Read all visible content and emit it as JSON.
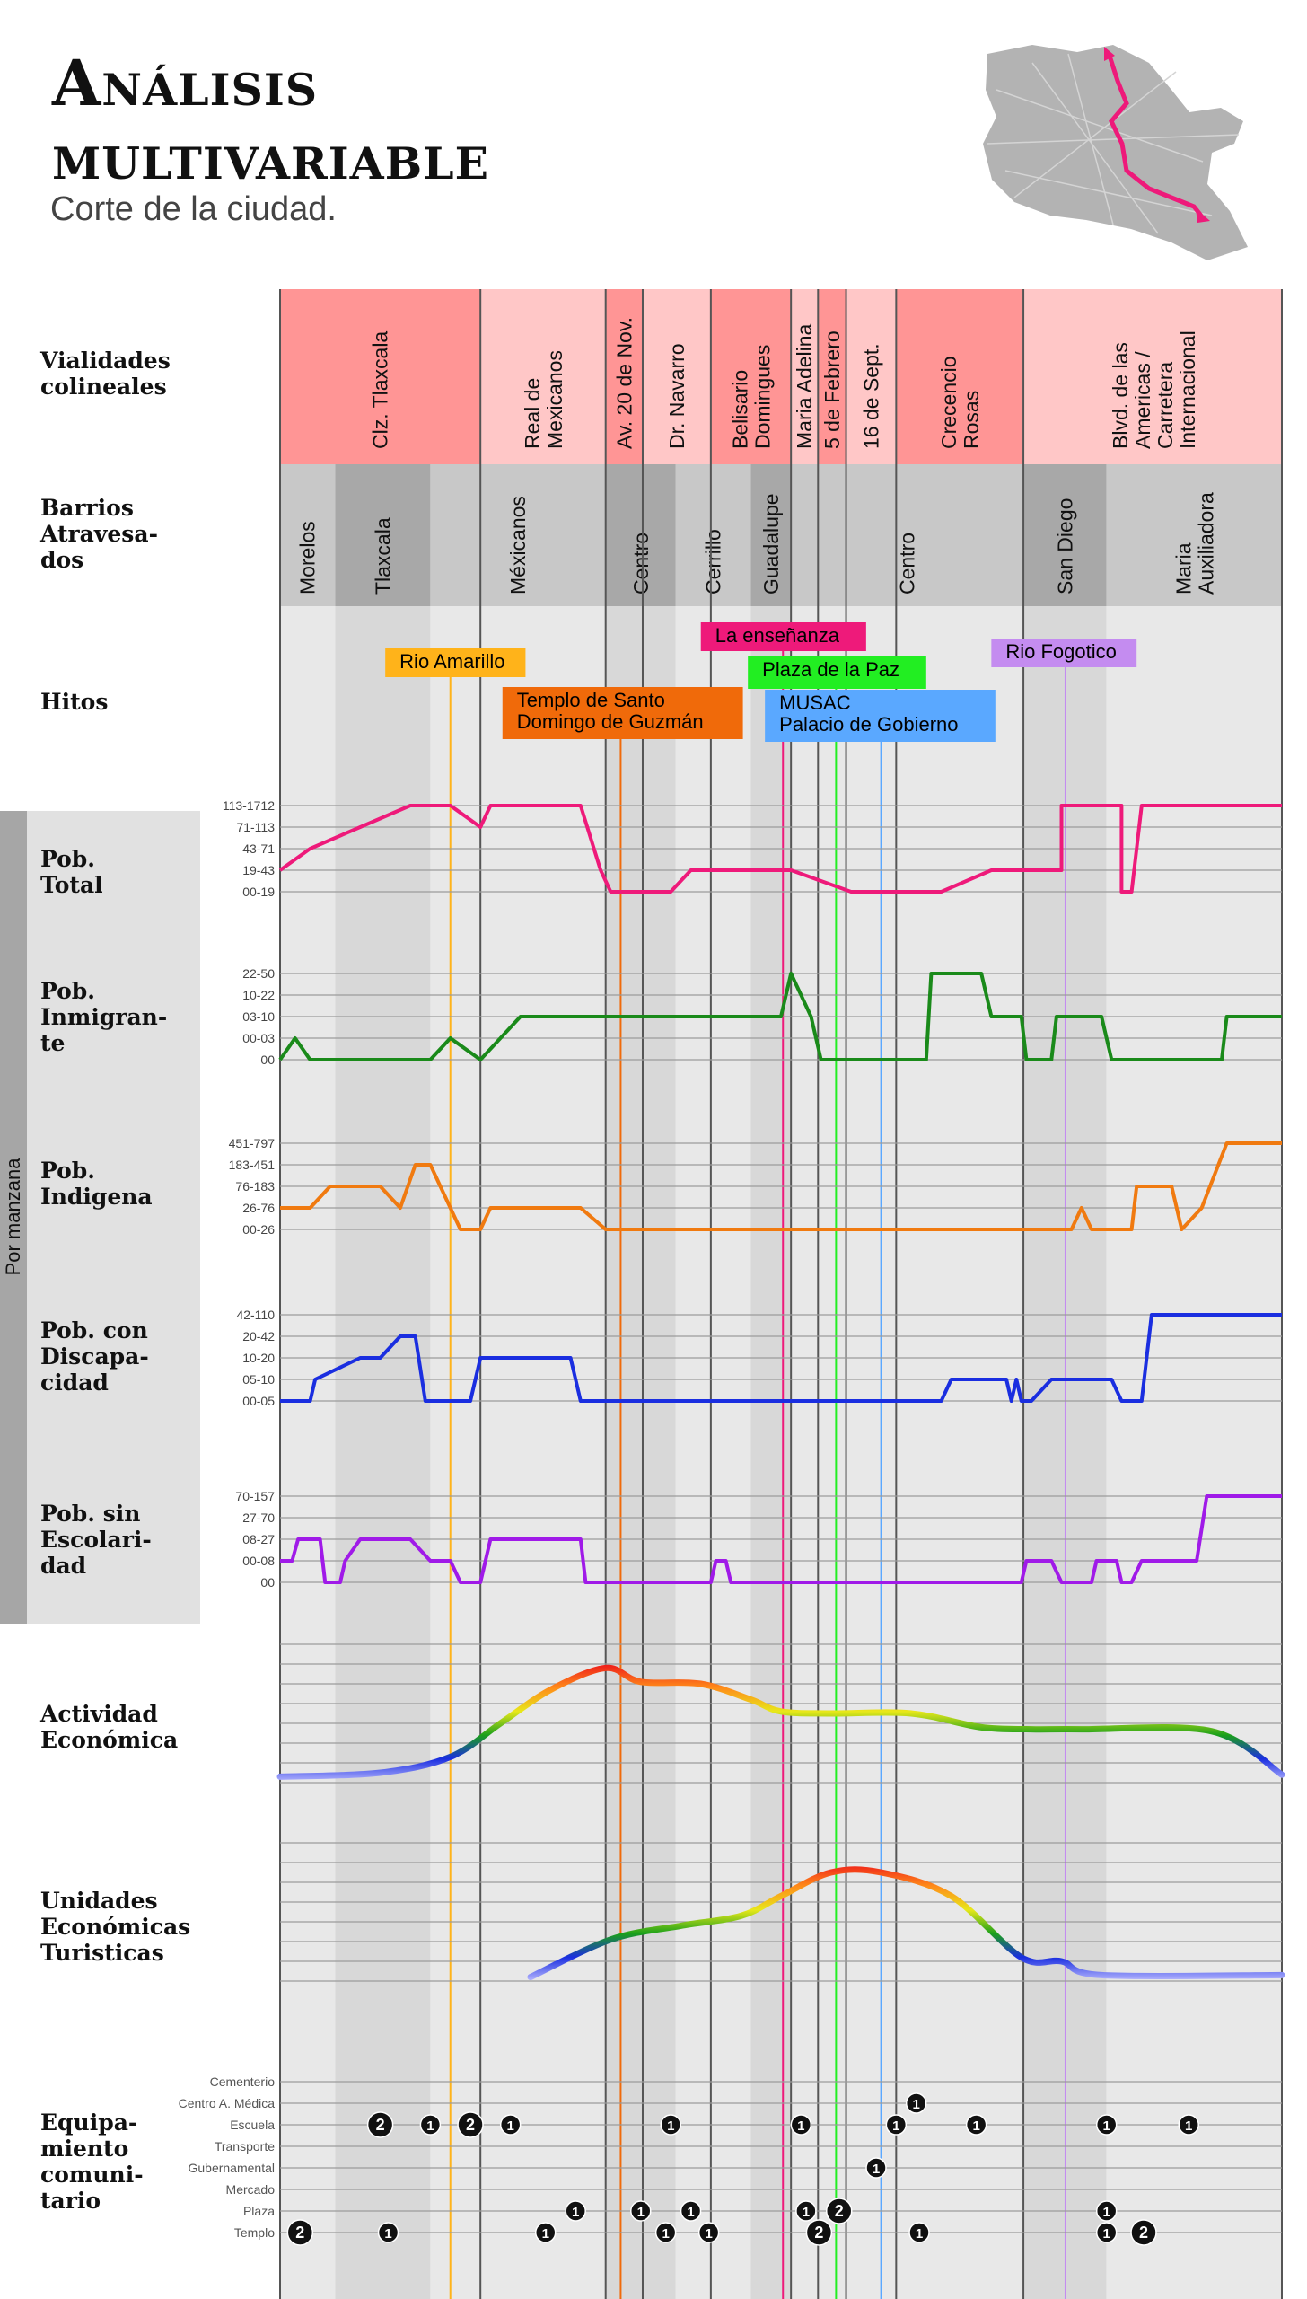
{
  "title_line1": "Análisis",
  "title_line2": "multivariable",
  "subtitle": "Corte de la ciudad.",
  "map_icon": "city-map-route-icon",
  "colors": {
    "accent": "#ee1a7a",
    "vialidad_dark": "#ff9595",
    "vialidad_light": "#ffc7c7",
    "barrio_dark": "#a8a8a8",
    "barrio_light": "#c8c8c8",
    "band_light": "#e8e8e8",
    "band_dark": "#d8d8d8"
  },
  "side_label": "Por manzana",
  "sections": {
    "vialidades": [
      "Vialidades",
      "colineales"
    ],
    "barrios": [
      "Barrios",
      "Atravesa-",
      "dos"
    ],
    "hitos": [
      "Hitos"
    ],
    "pob_total": [
      "Pob.",
      "Total"
    ],
    "pob_inmigrante": [
      "Pob.",
      "Inmigran-",
      "te"
    ],
    "pob_indigena": [
      "Pob.",
      "Indigena"
    ],
    "pob_discapacidad": [
      "Pob. con",
      "Discapa-",
      "cidad"
    ],
    "pob_escolaridad": [
      "Pob. sin",
      "Escolari-",
      "dad"
    ],
    "actividad": [
      "Actividad",
      "Económica"
    ],
    "turisticas": [
      "Unidades",
      "Económicas",
      "Turisticas"
    ],
    "equipamiento": [
      "Equipa-",
      "miento",
      "comuni-",
      "tario"
    ]
  },
  "vialidades": [
    {
      "name": [
        "Clz. Tlaxcala"
      ],
      "shade": "dark"
    },
    {
      "name": [
        "Real de",
        "Mexicanos"
      ],
      "shade": "light"
    },
    {
      "name": [
        "Av. 20 de Nov."
      ],
      "shade": "dark"
    },
    {
      "name": [
        "Dr. Navarro"
      ],
      "shade": "light"
    },
    {
      "name": [
        "Belisario",
        "Domingues"
      ],
      "shade": "dark"
    },
    {
      "name": [
        "Maria Adelina"
      ],
      "shade": "light"
    },
    {
      "name": [
        "5 de Febrero"
      ],
      "shade": "dark"
    },
    {
      "name": [
        "16 de Sept."
      ],
      "shade": "light"
    },
    {
      "name": [
        "Crecencio",
        "Rosas"
      ],
      "shade": "dark"
    },
    {
      "name": [
        "Blvd. de las",
        "Americas /",
        "Carretera",
        "Internacional"
      ],
      "shade": "light"
    }
  ],
  "barrios": [
    {
      "name": [
        "Morelos"
      ],
      "shade": "light"
    },
    {
      "name": [
        "Tlaxcala"
      ],
      "shade": "dark"
    },
    {
      "name": [
        "Méxicanos"
      ],
      "shade": "light"
    },
    {
      "name": [
        "Centro"
      ],
      "shade": "dark"
    },
    {
      "name": [
        "Cerrillo"
      ],
      "shade": "light"
    },
    {
      "name": [
        "Guadalupe"
      ],
      "shade": "dark"
    },
    {
      "name": [
        "Centro"
      ],
      "shade": "light"
    },
    {
      "name": [
        "San Diego"
      ],
      "shade": "dark"
    },
    {
      "name": [
        "Maria",
        "Auxiliadora"
      ],
      "shade": "light"
    }
  ],
  "hitos": [
    {
      "name": [
        "Rio Amarillo"
      ],
      "color": "#ffb31a",
      "text": "#111"
    },
    {
      "name": [
        "La enseñanza"
      ],
      "color": "#ee1a7a",
      "text": "#111"
    },
    {
      "name": [
        "Plaza de la Paz"
      ],
      "color": "#22ee22",
      "text": "#111"
    },
    {
      "name": [
        "Templo de Santo",
        "Domingo de Guzmán"
      ],
      "color": "#f06a0a",
      "text": "#111"
    },
    {
      "name": [
        "MUSAC",
        "Palacio de Gobierno"
      ],
      "color": "#5aa8ff",
      "text": "#111"
    },
    {
      "name": [
        "Rio Fogotico"
      ],
      "color": "#c48cf0",
      "text": "#111"
    }
  ],
  "chart_data": [
    {
      "id": "pob_total",
      "type": "line",
      "color": "#ee1a7a",
      "levels": [
        "00-19",
        "19-43",
        "43-71",
        "71-113",
        "113-1712"
      ],
      "points": [
        [
          0,
          1
        ],
        [
          0.03,
          2
        ],
        [
          0.08,
          3
        ],
        [
          0.13,
          4
        ],
        [
          0.17,
          4
        ],
        [
          0.2,
          3
        ],
        [
          0.21,
          4
        ],
        [
          0.3,
          4
        ],
        [
          0.32,
          1
        ],
        [
          0.33,
          0
        ],
        [
          0.39,
          0
        ],
        [
          0.41,
          1
        ],
        [
          0.51,
          1
        ],
        [
          0.57,
          0
        ],
        [
          0.66,
          0
        ],
        [
          0.71,
          1
        ],
        [
          0.78,
          1
        ],
        [
          0.78,
          4
        ],
        [
          0.84,
          4
        ],
        [
          0.84,
          0
        ],
        [
          0.85,
          0
        ],
        [
          0.86,
          4
        ],
        [
          1,
          4
        ]
      ]
    },
    {
      "id": "pob_inmigrante",
      "type": "line",
      "color": "#1a8a1a",
      "levels": [
        "00",
        "00-03",
        "03-10",
        "10-22",
        "22-50"
      ],
      "points": [
        [
          0,
          0
        ],
        [
          0.015,
          1
        ],
        [
          0.03,
          0
        ],
        [
          0.15,
          0
        ],
        [
          0.17,
          1
        ],
        [
          0.2,
          0
        ],
        [
          0.24,
          2
        ],
        [
          0.5,
          2
        ],
        [
          0.51,
          4
        ],
        [
          0.53,
          2
        ],
        [
          0.54,
          0
        ],
        [
          0.645,
          0
        ],
        [
          0.65,
          4
        ],
        [
          0.7,
          4
        ],
        [
          0.71,
          2
        ],
        [
          0.74,
          2
        ],
        [
          0.745,
          0
        ],
        [
          0.77,
          0
        ],
        [
          0.775,
          2
        ],
        [
          0.82,
          2
        ],
        [
          0.83,
          0
        ],
        [
          0.94,
          0
        ],
        [
          0.945,
          2
        ],
        [
          1,
          2
        ]
      ]
    },
    {
      "id": "pob_indigena",
      "type": "line",
      "color": "#f07a10",
      "levels": [
        "00-26",
        "26-76",
        "76-183",
        "183-451",
        "451-797"
      ],
      "points": [
        [
          0,
          1
        ],
        [
          0.03,
          1
        ],
        [
          0.05,
          2
        ],
        [
          0.1,
          2
        ],
        [
          0.12,
          1
        ],
        [
          0.135,
          3
        ],
        [
          0.15,
          3
        ],
        [
          0.17,
          1
        ],
        [
          0.18,
          0
        ],
        [
          0.2,
          0
        ],
        [
          0.21,
          1
        ],
        [
          0.3,
          1
        ],
        [
          0.325,
          0
        ],
        [
          0.79,
          0
        ],
        [
          0.8,
          1
        ],
        [
          0.81,
          0
        ],
        [
          0.85,
          0
        ],
        [
          0.855,
          2
        ],
        [
          0.89,
          2
        ],
        [
          0.9,
          0
        ],
        [
          0.92,
          1
        ],
        [
          0.945,
          4
        ],
        [
          1,
          4
        ]
      ]
    },
    {
      "id": "pob_discapacidad",
      "type": "line",
      "color": "#1a2ee0",
      "levels": [
        "00-05",
        "05-10",
        "10-20",
        "20-42",
        "42-110"
      ],
      "points": [
        [
          0,
          0
        ],
        [
          0.03,
          0
        ],
        [
          0.035,
          1
        ],
        [
          0.08,
          2
        ],
        [
          0.1,
          2
        ],
        [
          0.12,
          3
        ],
        [
          0.135,
          3
        ],
        [
          0.145,
          0
        ],
        [
          0.19,
          0
        ],
        [
          0.2,
          2
        ],
        [
          0.29,
          2
        ],
        [
          0.3,
          0
        ],
        [
          0.66,
          0
        ],
        [
          0.67,
          1
        ],
        [
          0.725,
          1
        ],
        [
          0.73,
          0
        ],
        [
          0.735,
          1
        ],
        [
          0.74,
          0
        ],
        [
          0.75,
          0
        ],
        [
          0.77,
          1
        ],
        [
          0.83,
          1
        ],
        [
          0.84,
          0
        ],
        [
          0.86,
          0
        ],
        [
          0.87,
          4
        ],
        [
          1,
          4
        ]
      ]
    },
    {
      "id": "pob_escolaridad",
      "type": "line",
      "color": "#a01ae8",
      "levels": [
        "00",
        "00-08",
        "08-27",
        "27-70",
        "70-157"
      ],
      "points": [
        [
          0,
          1
        ],
        [
          0.012,
          1
        ],
        [
          0.018,
          2
        ],
        [
          0.04,
          2
        ],
        [
          0.045,
          0
        ],
        [
          0.06,
          0
        ],
        [
          0.065,
          1
        ],
        [
          0.08,
          2
        ],
        [
          0.13,
          2
        ],
        [
          0.15,
          1
        ],
        [
          0.17,
          1
        ],
        [
          0.18,
          0
        ],
        [
          0.2,
          0
        ],
        [
          0.21,
          2
        ],
        [
          0.3,
          2
        ],
        [
          0.305,
          0
        ],
        [
          0.43,
          0
        ],
        [
          0.435,
          1
        ],
        [
          0.445,
          1
        ],
        [
          0.45,
          0
        ],
        [
          0.74,
          0
        ],
        [
          0.745,
          1
        ],
        [
          0.77,
          1
        ],
        [
          0.78,
          0
        ],
        [
          0.81,
          0
        ],
        [
          0.815,
          1
        ],
        [
          0.835,
          1
        ],
        [
          0.84,
          0
        ],
        [
          0.85,
          0
        ],
        [
          0.86,
          1
        ],
        [
          0.915,
          1
        ],
        [
          0.925,
          4
        ],
        [
          1,
          4
        ]
      ]
    },
    {
      "id": "actividad",
      "type": "area-gradient",
      "levels": 7,
      "points": [
        [
          0,
          0.3
        ],
        [
          0.1,
          0.5
        ],
        [
          0.17,
          1.3
        ],
        [
          0.22,
          3
        ],
        [
          0.27,
          4.7
        ],
        [
          0.325,
          5.8
        ],
        [
          0.36,
          5.1
        ],
        [
          0.42,
          5
        ],
        [
          0.47,
          4.2
        ],
        [
          0.5,
          3.6
        ],
        [
          0.55,
          3.5
        ],
        [
          0.63,
          3.5
        ],
        [
          0.7,
          2.8
        ],
        [
          0.75,
          2.7
        ],
        [
          0.8,
          2.7
        ],
        [
          0.93,
          2.6
        ],
        [
          1,
          0.4
        ]
      ]
    },
    {
      "id": "turisticas",
      "type": "area-gradient",
      "levels": 7,
      "points": [
        [
          0.25,
          0.2
        ],
        [
          0.33,
          2.1
        ],
        [
          0.4,
          2.8
        ],
        [
          0.46,
          3.3
        ],
        [
          0.5,
          4.3
        ],
        [
          0.55,
          5.5
        ],
        [
          0.6,
          5.5
        ],
        [
          0.67,
          4.3
        ],
        [
          0.74,
          1.2
        ],
        [
          0.78,
          1
        ],
        [
          0.82,
          0.3
        ],
        [
          1,
          0.3
        ]
      ]
    },
    {
      "id": "equipamiento",
      "type": "symbols",
      "categories": [
        "Cementerio",
        "Centro A. Médica",
        "Escuela",
        "Transporte",
        "Gubernamental",
        "Mercado",
        "Plaza",
        "Templo"
      ],
      "points": [
        [
          0.1,
          2,
          "2"
        ],
        [
          0.15,
          2,
          "1"
        ],
        [
          0.19,
          2,
          "2"
        ],
        [
          0.23,
          2,
          "1"
        ],
        [
          0.39,
          2,
          "1"
        ],
        [
          0.52,
          2,
          "1"
        ],
        [
          0.615,
          2,
          "1"
        ],
        [
          0.695,
          2,
          "1"
        ],
        [
          0.825,
          2,
          "1"
        ],
        [
          0.907,
          2,
          "1"
        ],
        [
          0.635,
          1,
          "1"
        ],
        [
          0.595,
          4,
          "1"
        ],
        [
          0.295,
          6,
          "1"
        ],
        [
          0.36,
          6,
          "1"
        ],
        [
          0.41,
          6,
          "1"
        ],
        [
          0.525,
          6,
          "1"
        ],
        [
          0.558,
          6,
          "2"
        ],
        [
          0.825,
          6,
          "1"
        ],
        [
          0.02,
          7,
          "2"
        ],
        [
          0.108,
          7,
          "1"
        ],
        [
          0.265,
          7,
          "1"
        ],
        [
          0.385,
          7,
          "1"
        ],
        [
          0.428,
          7,
          "1"
        ],
        [
          0.538,
          7,
          "2"
        ],
        [
          0.638,
          7,
          "1"
        ],
        [
          0.825,
          7,
          "1"
        ],
        [
          0.862,
          7,
          "2"
        ]
      ]
    }
  ]
}
